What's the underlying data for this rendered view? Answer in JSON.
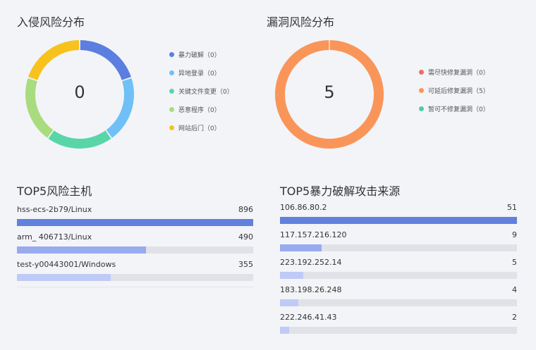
{
  "intrusion": {
    "title": "入侵风险分布",
    "total": "0",
    "legend": [
      {
        "label": "暴力破解（0）",
        "color": "#5b7ee0"
      },
      {
        "label": "异地登录（0）",
        "color": "#6fc0f7"
      },
      {
        "label": "关键文件变更（0）",
        "color": "#58d6a8"
      },
      {
        "label": "恶意程序（0）",
        "color": "#a8dc7f"
      },
      {
        "label": "网站后门（0）",
        "color": "#f8c21e"
      }
    ]
  },
  "vuln": {
    "title": "漏洞风险分布",
    "total": "5",
    "legend": [
      {
        "label": "需尽快修复漏洞（0）",
        "color": "#f06a6a"
      },
      {
        "label": "可延后修复漏洞（5）",
        "color": "#fa955a"
      },
      {
        "label": "暂可不修复漏洞（0）",
        "color": "#52cba1"
      }
    ]
  },
  "top_hosts": {
    "title": "TOP5风险主机",
    "max": 896,
    "items": [
      {
        "name": "hss-ecs-2b79/Linux",
        "value": 896,
        "display": "896",
        "color": "#6181dd"
      },
      {
        "name": "arm_ 406713/Linux",
        "value": 490,
        "display": "490",
        "color": "#98aaf0"
      },
      {
        "name": "test-y00443001/Windows",
        "value": 355,
        "display": "355",
        "color": "#bfcbf6"
      }
    ]
  },
  "top_sources": {
    "title": "TOP5暴力破解攻击来源",
    "max": 51,
    "items": [
      {
        "name": "106.86.80.2",
        "value": 51,
        "display": "51",
        "color": "#6181dd"
      },
      {
        "name": "117.157.216.120",
        "value": 9,
        "display": "9",
        "color": "#98aaf0"
      },
      {
        "name": "223.192.252.14",
        "value": 5,
        "display": "5",
        "color": "#bfcbf6"
      },
      {
        "name": "183.198.26.248",
        "value": 4,
        "display": "4",
        "color": "#bfcbf6"
      },
      {
        "name": "222.246.41.43",
        "value": 2,
        "display": "2",
        "color": "#bfcbf6"
      }
    ]
  }
}
